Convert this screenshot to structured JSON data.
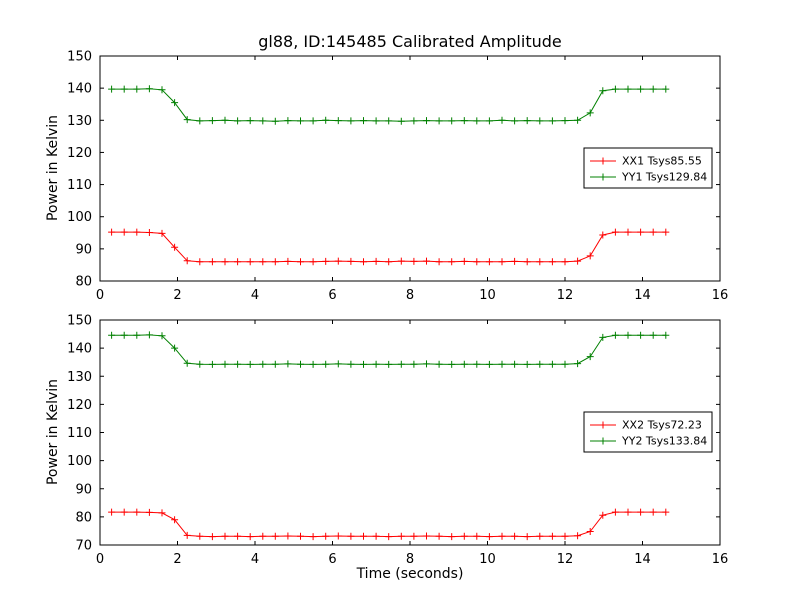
{
  "figure": {
    "background": "#ffffff"
  },
  "chart_data": [
    {
      "type": "line",
      "title": "gl88, ID:145485 Calibrated Amplitude",
      "xlabel": "",
      "ylabel": "Power in Kelvin",
      "xlim": [
        0,
        16
      ],
      "ylim": [
        80,
        150
      ],
      "xticks": [
        0,
        2,
        4,
        6,
        8,
        10,
        12,
        14,
        16
      ],
      "yticks": [
        80,
        90,
        100,
        110,
        120,
        130,
        140,
        150
      ],
      "grid": false,
      "legend_position": "center right",
      "x": [
        0.3,
        0.625,
        0.95,
        1.275,
        1.6,
        1.925,
        2.25,
        2.575,
        2.9,
        3.225,
        3.55,
        3.875,
        4.2,
        4.525,
        4.85,
        5.175,
        5.5,
        5.825,
        6.15,
        6.475,
        6.8,
        7.125,
        7.45,
        7.775,
        8.1,
        8.425,
        8.75,
        9.075,
        9.4,
        9.725,
        10.05,
        10.375,
        10.7,
        11.025,
        11.35,
        11.675,
        12.0,
        12.325,
        12.65,
        12.975,
        13.3,
        13.625,
        13.95,
        14.275,
        14.6
      ],
      "series": [
        {
          "name": "XX1 Tsys85.55",
          "color": "#ff0000",
          "marker": "+",
          "values": [
            95.2,
            95.2,
            95.2,
            95.1,
            94.8,
            90.5,
            86.3,
            86.0,
            86.0,
            86.0,
            86.0,
            86.0,
            86.0,
            86.0,
            86.1,
            86.0,
            86.0,
            86.1,
            86.2,
            86.1,
            86.0,
            86.1,
            86.0,
            86.2,
            86.1,
            86.2,
            86.0,
            86.0,
            86.1,
            86.0,
            86.0,
            86.0,
            86.1,
            86.0,
            86.0,
            86.0,
            86.0,
            86.2,
            87.8,
            94.3,
            95.2,
            95.2,
            95.2,
            95.2,
            95.2
          ]
        },
        {
          "name": "YY1 Tsys129.84",
          "color": "#008000",
          "marker": "+",
          "values": [
            139.7,
            139.7,
            139.7,
            139.8,
            139.5,
            135.5,
            130.2,
            129.8,
            129.9,
            130.0,
            129.8,
            129.9,
            129.8,
            129.7,
            129.9,
            129.8,
            129.8,
            130.0,
            129.9,
            129.8,
            129.9,
            129.8,
            129.8,
            129.7,
            129.8,
            129.9,
            129.8,
            129.8,
            129.9,
            129.8,
            129.8,
            130.0,
            129.8,
            129.9,
            129.8,
            129.8,
            129.9,
            130.0,
            132.3,
            139.2,
            139.7,
            139.7,
            139.7,
            139.7,
            139.7
          ]
        }
      ]
    },
    {
      "type": "line",
      "title": "",
      "xlabel": "Time (seconds)",
      "ylabel": "Power in Kelvin",
      "xlim": [
        0,
        16
      ],
      "ylim": [
        70,
        150
      ],
      "xticks": [
        0,
        2,
        4,
        6,
        8,
        10,
        12,
        14,
        16
      ],
      "yticks": [
        70,
        80,
        90,
        100,
        110,
        120,
        130,
        140,
        150
      ],
      "grid": false,
      "legend_position": "center right",
      "x": [
        0.3,
        0.625,
        0.95,
        1.275,
        1.6,
        1.925,
        2.25,
        2.575,
        2.9,
        3.225,
        3.55,
        3.875,
        4.2,
        4.525,
        4.85,
        5.175,
        5.5,
        5.825,
        6.15,
        6.475,
        6.8,
        7.125,
        7.45,
        7.775,
        8.1,
        8.425,
        8.75,
        9.075,
        9.4,
        9.725,
        10.05,
        10.375,
        10.7,
        11.025,
        11.35,
        11.675,
        12.0,
        12.325,
        12.65,
        12.975,
        13.3,
        13.625,
        13.95,
        14.275,
        14.6
      ],
      "series": [
        {
          "name": "XX2 Tsys72.23",
          "color": "#ff0000",
          "marker": "+",
          "values": [
            81.7,
            81.7,
            81.7,
            81.6,
            81.4,
            79.0,
            73.4,
            73.1,
            73.0,
            73.1,
            73.1,
            73.0,
            73.1,
            73.1,
            73.2,
            73.1,
            73.0,
            73.1,
            73.2,
            73.1,
            73.1,
            73.1,
            73.0,
            73.1,
            73.1,
            73.2,
            73.1,
            73.0,
            73.1,
            73.1,
            73.0,
            73.1,
            73.1,
            73.0,
            73.1,
            73.1,
            73.1,
            73.3,
            74.8,
            80.6,
            81.7,
            81.7,
            81.7,
            81.7,
            81.7
          ]
        },
        {
          "name": "YY2 Tsys133.84",
          "color": "#008000",
          "marker": "+",
          "values": [
            144.6,
            144.6,
            144.6,
            144.7,
            144.4,
            140.0,
            134.6,
            134.3,
            134.2,
            134.3,
            134.3,
            134.2,
            134.3,
            134.3,
            134.4,
            134.3,
            134.2,
            134.3,
            134.4,
            134.3,
            134.2,
            134.3,
            134.2,
            134.3,
            134.3,
            134.4,
            134.3,
            134.2,
            134.3,
            134.3,
            134.2,
            134.3,
            134.3,
            134.2,
            134.3,
            134.3,
            134.3,
            134.5,
            137.0,
            143.8,
            144.6,
            144.6,
            144.6,
            144.6,
            144.6
          ]
        }
      ]
    }
  ]
}
